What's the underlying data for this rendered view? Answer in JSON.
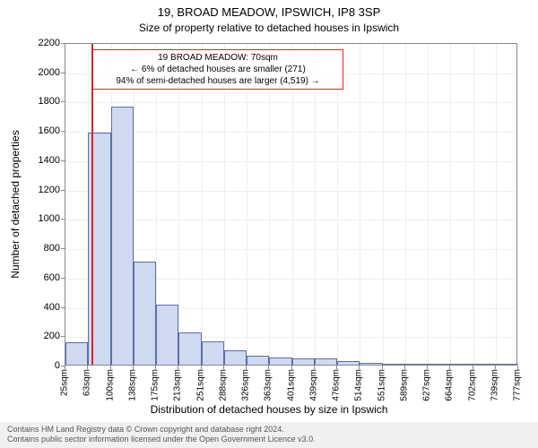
{
  "title_main": "19, BROAD MEADOW, IPSWICH, IP8 3SP",
  "title_sub": "Size of property relative to detached houses in Ipswich",
  "y_axis_label": "Number of detached properties",
  "x_axis_label": "Distribution of detached houses by size in Ipswich",
  "footer_line1": "Contains HM Land Registry data © Crown copyright and database right 2024.",
  "footer_line2": "Contains public sector information licensed under the Open Government Licence v3.0.",
  "chart": {
    "type": "histogram",
    "plot_bg": "#ffffff",
    "grid_color": "#eeeeee",
    "border_color": "#888888",
    "bar_fill": "#cfd9ef",
    "bar_stroke": "#5a6ea8",
    "marker_color": "#d62728",
    "marker_x_sqm": 70,
    "x_min_sqm": 25,
    "x_max_sqm": 800,
    "ylim": [
      0,
      2200
    ],
    "ytick_step": 200,
    "yticks": [
      0,
      200,
      400,
      600,
      800,
      1000,
      1200,
      1400,
      1600,
      1800,
      2000,
      2200
    ],
    "xtick_step_sqm": 37.6,
    "xtick_labels": [
      "25sqm",
      "63sqm",
      "100sqm",
      "138sqm",
      "175sqm",
      "213sqm",
      "251sqm",
      "288sqm",
      "326sqm",
      "363sqm",
      "401sqm",
      "439sqm",
      "476sqm",
      "514sqm",
      "551sqm",
      "589sqm",
      "627sqm",
      "664sqm",
      "702sqm",
      "739sqm",
      "777sqm"
    ],
    "bars": [
      {
        "i": 0,
        "v": 150
      },
      {
        "i": 1,
        "v": 1580
      },
      {
        "i": 2,
        "v": 1760
      },
      {
        "i": 3,
        "v": 700
      },
      {
        "i": 4,
        "v": 410
      },
      {
        "i": 5,
        "v": 220
      },
      {
        "i": 6,
        "v": 160
      },
      {
        "i": 7,
        "v": 100
      },
      {
        "i": 8,
        "v": 60
      },
      {
        "i": 9,
        "v": 50
      },
      {
        "i": 10,
        "v": 40
      },
      {
        "i": 11,
        "v": 40
      },
      {
        "i": 12,
        "v": 25
      },
      {
        "i": 13,
        "v": 10
      },
      {
        "i": 14,
        "v": 8
      },
      {
        "i": 15,
        "v": 6
      },
      {
        "i": 16,
        "v": 5
      },
      {
        "i": 17,
        "v": 4
      },
      {
        "i": 18,
        "v": 3
      },
      {
        "i": 19,
        "v": 2
      }
    ],
    "annotation": {
      "line1": "19 BROAD MEADOW: 70sqm",
      "line2": "← 6% of detached houses are smaller (271)",
      "line3": "94% of semi-detached houses are larger (4,519) →"
    },
    "fontsize_title": 13,
    "fontsize_sub": 12,
    "fontsize_axis_label": 12,
    "fontsize_tick": 11,
    "fontsize_xtick": 10,
    "fontsize_annot": 10
  }
}
